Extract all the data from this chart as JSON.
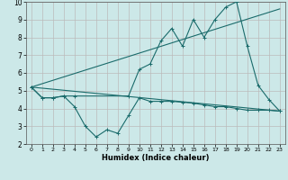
{
  "xlabel": "Humidex (Indice chaleur)",
  "xlim": [
    -0.5,
    23.5
  ],
  "ylim": [
    2,
    10
  ],
  "xticks": [
    0,
    1,
    2,
    3,
    4,
    5,
    6,
    7,
    8,
    9,
    10,
    11,
    12,
    13,
    14,
    15,
    16,
    17,
    18,
    19,
    20,
    21,
    22,
    23
  ],
  "yticks": [
    2,
    3,
    4,
    5,
    6,
    7,
    8,
    9,
    10
  ],
  "bg_color": "#cce8e8",
  "grid_color": "#bbbbbb",
  "line_color": "#1a6b6b",
  "line1_x": [
    0,
    1,
    2,
    3,
    4,
    5,
    6,
    7,
    8,
    9,
    10,
    11,
    12,
    13,
    14,
    15,
    16,
    17,
    18,
    19,
    20,
    21,
    22,
    23
  ],
  "line1_y": [
    5.2,
    4.6,
    4.6,
    4.7,
    4.1,
    3.0,
    2.4,
    2.8,
    2.6,
    3.6,
    4.6,
    4.4,
    4.4,
    4.4,
    4.35,
    4.3,
    4.2,
    4.1,
    4.1,
    4.0,
    3.9,
    3.9,
    3.9,
    3.85
  ],
  "line2_x": [
    0,
    1,
    2,
    3,
    4,
    9,
    10,
    11,
    12,
    13,
    14,
    15,
    16,
    17,
    18,
    19,
    20,
    21,
    22,
    23
  ],
  "line2_y": [
    5.2,
    4.6,
    4.6,
    4.7,
    4.7,
    4.7,
    6.2,
    6.5,
    7.8,
    8.5,
    7.5,
    9.0,
    8.0,
    9.0,
    9.7,
    10.0,
    7.5,
    5.3,
    4.5,
    3.85
  ],
  "line3_x": [
    0,
    23
  ],
  "line3_y": [
    5.2,
    3.85
  ],
  "line4_x": [
    0,
    23
  ],
  "line4_y": [
    5.2,
    9.6
  ]
}
